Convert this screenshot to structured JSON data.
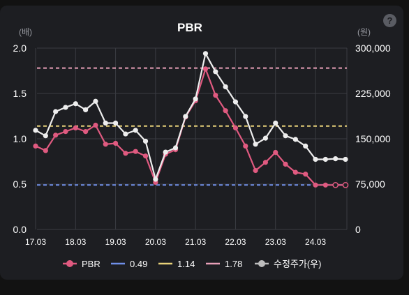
{
  "help": {
    "label": "?"
  },
  "chart_data": {
    "type": "line",
    "title": "PBR",
    "y_left_unit": "(배)",
    "y_right_unit": "(원)",
    "y_left_ticks": [
      "0.0",
      "0.5",
      "1.0",
      "1.5",
      "2.0"
    ],
    "y_right_ticks": [
      "0",
      "75,000",
      "150,000",
      "225,000",
      "300,000"
    ],
    "y_left_range": [
      0,
      2.0
    ],
    "y_right_range": [
      0,
      300000
    ],
    "x_ticks": [
      {
        "label": "17.03",
        "x": 0
      },
      {
        "label": "18.03",
        "x": 4
      },
      {
        "label": "19.03",
        "x": 8
      },
      {
        "label": "20.03",
        "x": 12
      },
      {
        "label": "21.03",
        "x": 16
      },
      {
        "label": "22.03",
        "x": 20
      },
      {
        "label": "23.03",
        "x": 24
      },
      {
        "label": "24.03",
        "x": 28
      }
    ],
    "grid": true,
    "legend_position": "bottom",
    "legend": [
      "PBR",
      "0.49",
      "1.14",
      "1.78",
      "수정주가(우)"
    ],
    "reference_lines": [
      {
        "value": 0.49,
        "color": "#6f8fe8"
      },
      {
        "value": 1.14,
        "color": "#e8d27a"
      },
      {
        "value": 1.78,
        "color": "#e8a0b8"
      }
    ],
    "series": [
      {
        "name": "PBR",
        "axis": "left",
        "color": "#e05a80",
        "values": [
          0.92,
          0.87,
          1.04,
          1.08,
          1.12,
          1.08,
          1.15,
          0.94,
          0.95,
          0.84,
          0.86,
          0.81,
          0.52,
          0.83,
          0.88,
          1.24,
          1.42,
          1.77,
          1.48,
          1.31,
          1.12,
          0.92,
          0.65,
          0.74,
          0.85,
          0.72,
          0.63,
          0.61,
          0.49,
          0.49,
          0.49,
          0.49
        ],
        "hollow_from_index": 30
      },
      {
        "name": "수정주가(우)",
        "axis": "right",
        "color": "#eeeeee",
        "values": [
          164000,
          155000,
          195000,
          202000,
          208000,
          198000,
          212000,
          176000,
          176000,
          158000,
          164000,
          146000,
          83000,
          128000,
          135000,
          187000,
          216000,
          291000,
          261000,
          236000,
          211000,
          187000,
          141000,
          151000,
          176000,
          155000,
          149000,
          138000,
          116000,
          116000,
          117000,
          116000
        ]
      }
    ]
  }
}
